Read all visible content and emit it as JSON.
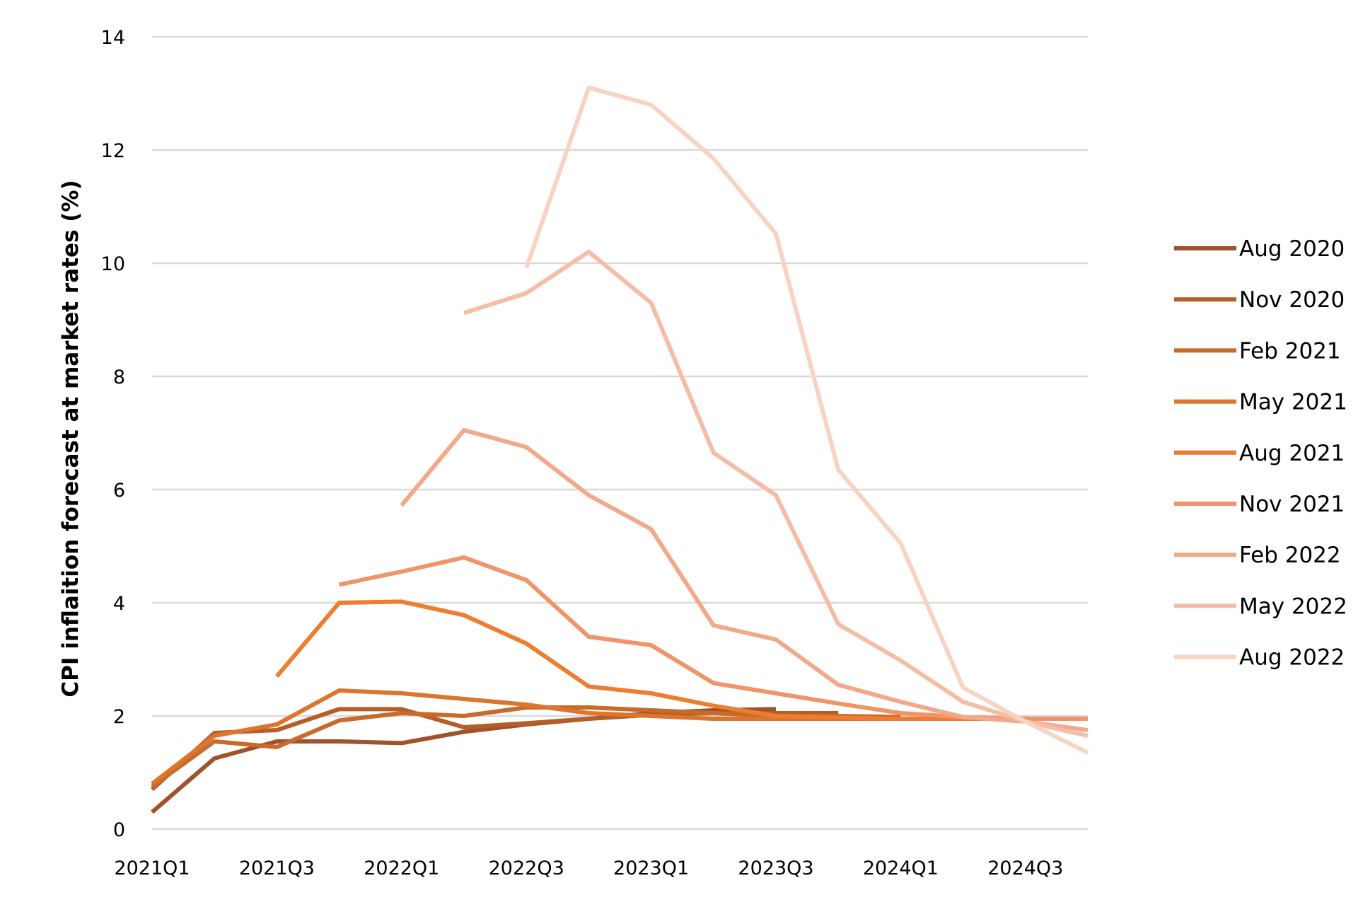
{
  "chart_data": {
    "type": "line",
    "xlabel": "",
    "ylabel": "CPI inflaition forecast at market rates (%)",
    "ylim": [
      0,
      14
    ],
    "yticks": [
      0,
      2,
      4,
      6,
      8,
      10,
      12,
      14
    ],
    "grid": true,
    "legend_position": "right",
    "x": [
      "2021Q1",
      "2021Q2",
      "2021Q3",
      "2021Q4",
      "2022Q1",
      "2022Q2",
      "2022Q3",
      "2022Q4",
      "2023Q1",
      "2023Q2",
      "2023Q3",
      "2023Q4",
      "2024Q1",
      "2024Q2",
      "2024Q3",
      "2024Q4"
    ],
    "x_tick_labels": [
      "2021Q1",
      "2021Q3",
      "2022Q1",
      "2022Q3",
      "2023Q1",
      "2023Q3",
      "2024Q1",
      "2024Q3"
    ],
    "series": [
      {
        "name": "Aug 2020",
        "color": "#a0522d",
        "values": [
          0.3,
          1.25,
          1.55,
          1.55,
          1.52,
          1.72,
          1.85,
          1.95,
          2.05,
          2.1,
          2.12,
          null,
          null,
          null,
          null,
          null
        ]
      },
      {
        "name": "Nov 2020",
        "color": "#b55e27",
        "values": [
          0.7,
          1.7,
          1.75,
          2.12,
          2.12,
          1.8,
          1.87,
          1.95,
          2.02,
          2.05,
          2.05,
          2.05,
          null,
          null,
          null,
          null
        ]
      },
      {
        "name": "Feb 2021",
        "color": "#c86a2a",
        "values": [
          0.75,
          1.55,
          1.45,
          1.92,
          2.05,
          2.0,
          2.15,
          2.15,
          2.1,
          2.05,
          2.0,
          2.0,
          1.98,
          null,
          null,
          null
        ]
      },
      {
        "name": "May 2021",
        "color": "#dc752d",
        "values": [
          0.8,
          1.65,
          1.85,
          2.45,
          2.4,
          2.3,
          2.2,
          2.05,
          2.0,
          1.95,
          1.95,
          1.95,
          1.95,
          1.95,
          null,
          null
        ]
      },
      {
        "name": "Aug 2021",
        "color": "#ed7d31",
        "values": [
          null,
          null,
          2.7,
          4.0,
          4.02,
          3.78,
          3.28,
          2.52,
          2.4,
          2.18,
          2.0,
          1.97,
          1.95,
          1.95,
          1.95,
          1.95
        ]
      },
      {
        "name": "Nov 2021",
        "color": "#f0956a",
        "values": [
          null,
          null,
          null,
          4.32,
          4.55,
          4.8,
          4.4,
          3.4,
          3.25,
          2.58,
          2.4,
          2.22,
          2.05,
          1.98,
          1.95,
          1.95
        ]
      },
      {
        "name": "Feb 2022",
        "color": "#f2a98a",
        "values": [
          null,
          null,
          null,
          null,
          5.72,
          7.05,
          6.75,
          5.9,
          5.3,
          3.6,
          3.35,
          2.55,
          2.25,
          1.98,
          1.9,
          1.75
        ]
      },
      {
        "name": "May 2022",
        "color": "#f5bca6",
        "values": [
          null,
          null,
          null,
          null,
          null,
          9.12,
          9.47,
          10.2,
          9.3,
          6.65,
          5.9,
          3.62,
          2.98,
          2.25,
          1.9,
          1.65
        ]
      },
      {
        "name": "Aug 2022",
        "color": "#f8d3c3",
        "values": [
          null,
          null,
          null,
          null,
          null,
          null,
          9.92,
          13.1,
          12.8,
          11.85,
          10.52,
          6.35,
          5.05,
          2.5,
          1.9,
          1.35
        ]
      }
    ]
  }
}
